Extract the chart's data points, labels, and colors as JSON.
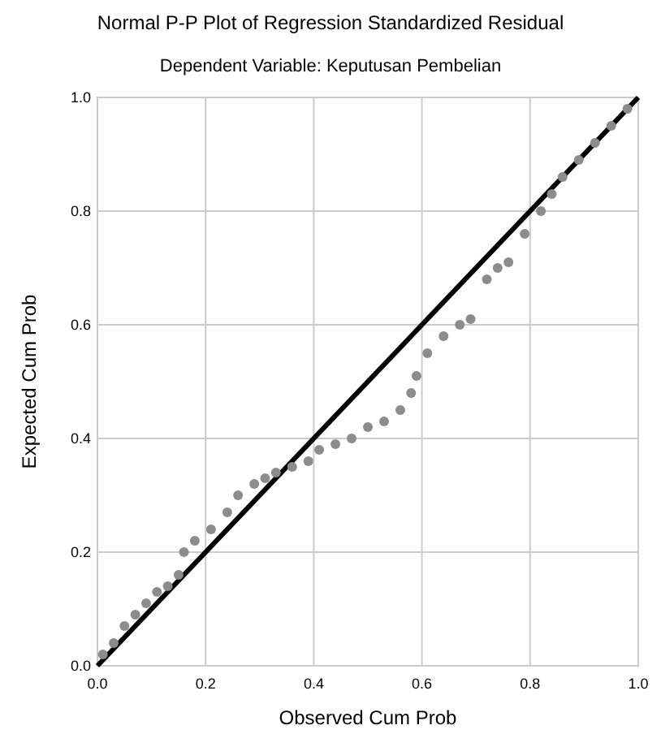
{
  "chart_data": {
    "type": "scatter",
    "title": "Normal P-P Plot of Regression Standardized Residual",
    "subtitle": "Dependent Variable: Keputusan Pembelian",
    "xlabel": "Observed Cum Prob",
    "ylabel": "Expected Cum Prob",
    "xlim": [
      0,
      1
    ],
    "ylim": [
      0,
      1
    ],
    "xticks": [
      {
        "value": 0,
        "label": "0.0"
      },
      0.2,
      0.4,
      0.6,
      0.8,
      {
        "value": 1,
        "label": "1.0"
      }
    ],
    "yticks": [
      {
        "value": 0,
        "label": "0.0"
      },
      0.2,
      0.4,
      0.6,
      0.8,
      {
        "value": 1,
        "label": "1.0"
      }
    ],
    "grid": true,
    "marker": "circle",
    "series": [
      {
        "color": "#8c8c8c",
        "x": [
          0.01,
          0.03,
          0.05,
          0.07,
          0.09,
          0.11,
          0.13,
          0.15,
          0.16,
          0.18,
          0.21,
          0.24,
          0.26,
          0.29,
          0.31,
          0.33,
          0.36,
          0.39,
          0.41,
          0.44,
          0.47,
          0.5,
          0.53,
          0.56,
          0.58,
          0.59,
          0.61,
          0.64,
          0.67,
          0.69,
          0.72,
          0.74,
          0.76,
          0.79,
          0.82,
          0.84,
          0.86,
          0.89,
          0.92,
          0.95,
          0.98
        ],
        "values": [
          0.02,
          0.04,
          0.07,
          0.09,
          0.11,
          0.13,
          0.14,
          0.16,
          0.2,
          0.22,
          0.24,
          0.27,
          0.3,
          0.32,
          0.33,
          0.34,
          0.35,
          0.36,
          0.38,
          0.39,
          0.4,
          0.42,
          0.43,
          0.45,
          0.48,
          0.51,
          0.55,
          0.58,
          0.6,
          0.61,
          0.68,
          0.7,
          0.71,
          0.76,
          0.8,
          0.83,
          0.86,
          0.89,
          0.92,
          0.95,
          0.98
        ]
      },
      {
        "type": "line",
        "marker": "none",
        "color": "#000000",
        "x": [
          0,
          1
        ],
        "values": [
          0,
          1
        ]
      }
    ]
  }
}
